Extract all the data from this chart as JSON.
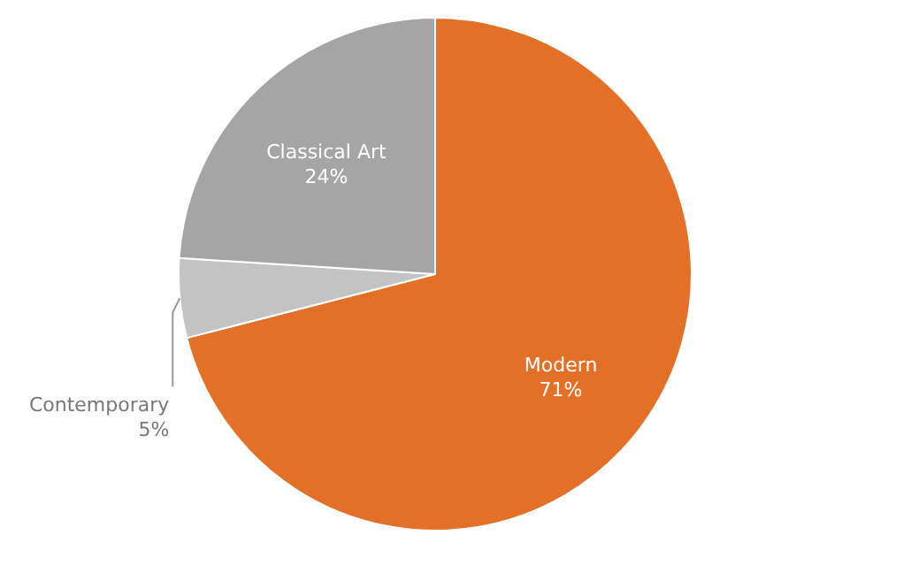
{
  "chart_data": {
    "type": "pie",
    "categories": [
      "Modern",
      "Contemporary",
      "Classical Art"
    ],
    "values": [
      71,
      5,
      24
    ],
    "colors": [
      "#e46f26",
      "#c3c3c3",
      "#a5a5a5"
    ],
    "value_labels": [
      "71%",
      "5%",
      "24%"
    ]
  }
}
